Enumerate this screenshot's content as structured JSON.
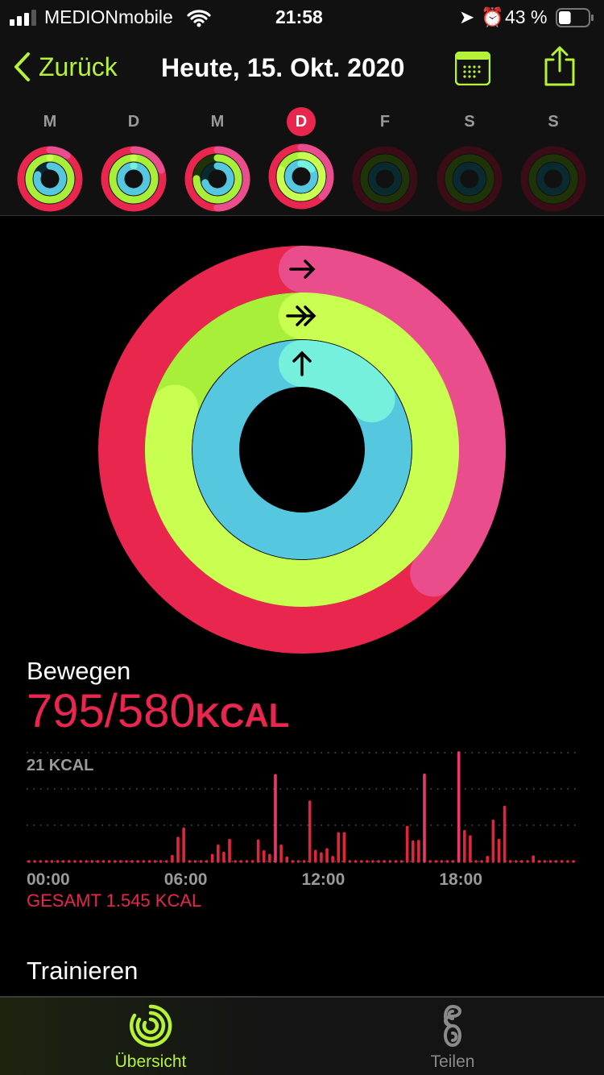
{
  "status": {
    "carrier": "MEDIONmobile",
    "time": "21:58",
    "battery": "43 %",
    "battery_level": 0.43
  },
  "nav": {
    "back": "Zurück",
    "title": "Heute, 15. Okt. 2020",
    "calendar_icon": "calendar-icon",
    "share_icon": "share-icon"
  },
  "colors": {
    "accent": "#b6f238",
    "move": "#e8264e",
    "exercise": "#b6f238",
    "stand": "#5fd8e0"
  },
  "week": [
    {
      "label": "M",
      "move": 1.1,
      "exercise": 1.0,
      "stand": 0.8,
      "active": true
    },
    {
      "label": "D",
      "move": 1.2,
      "exercise": 1.0,
      "stand": 1.0,
      "active": true
    },
    {
      "label": "M",
      "move": 1.5,
      "exercise": 0.75,
      "stand": 0.7,
      "active": true
    },
    {
      "label": "D",
      "move": 1.37,
      "exercise": 1.8,
      "stand": 1.15,
      "active": true,
      "today": true
    },
    {
      "label": "F",
      "move": 0,
      "exercise": 0,
      "stand": 0,
      "active": false
    },
    {
      "label": "S",
      "move": 0,
      "exercise": 0,
      "stand": 0,
      "active": false
    },
    {
      "label": "S",
      "move": 0,
      "exercise": 0,
      "stand": 0,
      "active": false
    }
  ],
  "rings": {
    "move": 1.37,
    "exercise": 1.8,
    "stand": 1.15
  },
  "move": {
    "title": "Bewegen",
    "value": "795/580",
    "unit": "KCAL",
    "total": "GESAMT 1.545 KCAL"
  },
  "chart_data": {
    "type": "bar",
    "ylabel": "21 KCAL",
    "ylim": [
      0,
      21
    ],
    "xticks": [
      "00:00",
      "06:00",
      "12:00",
      "18:00"
    ],
    "values": [
      0,
      0,
      0,
      0,
      0,
      0,
      0,
      0,
      0,
      0,
      0,
      0,
      0,
      0,
      0,
      0,
      0,
      0,
      0,
      0,
      0,
      0,
      0,
      0,
      0,
      1,
      4.5,
      6.3,
      0,
      0,
      0,
      0,
      1.2,
      3,
      1.6,
      4.1,
      0,
      0,
      0,
      0,
      4,
      1.9,
      1.2,
      16.6,
      3,
      0.7,
      0,
      0,
      0,
      11.5,
      2,
      1.5,
      2.3,
      0.8,
      5.4,
      5.4,
      0,
      0,
      0,
      0,
      0,
      0,
      0,
      0,
      0,
      0,
      6.6,
      3.8,
      3.9,
      16.7,
      0,
      0,
      0,
      0,
      0,
      21,
      5.8,
      4.8,
      0,
      0,
      0.8,
      7.8,
      4.1,
      10.5,
      0,
      0,
      0,
      0,
      0.9,
      0,
      0,
      0,
      0,
      0,
      0,
      0
    ]
  },
  "exercise": {
    "title": "Trainieren"
  },
  "tabs": [
    {
      "label": "Übersicht",
      "icon": "activity-rings-icon",
      "active": true
    },
    {
      "label": "Teilen",
      "icon": "sharing-icon",
      "active": false
    }
  ]
}
